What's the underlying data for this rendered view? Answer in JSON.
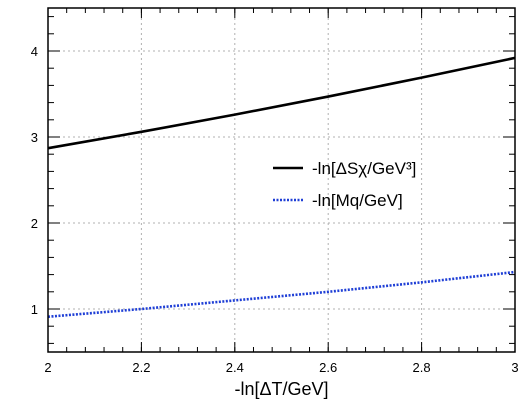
{
  "chart_data": {
    "type": "line",
    "title": "",
    "xlabel": "-ln[ΔT/GeV]",
    "ylabel": "",
    "xlim": [
      2,
      3
    ],
    "ylim": [
      0.5,
      4.5
    ],
    "xticks": [
      2,
      2.2,
      2.4,
      2.6,
      2.8,
      3
    ],
    "xtick_labels": [
      "2",
      "2.2",
      "2.4",
      "2.6",
      "2.8",
      "3"
    ],
    "yticks": [
      1,
      2,
      3,
      4
    ],
    "ytick_labels": [
      "1",
      "2",
      "3",
      "4"
    ],
    "grid": true,
    "legend_position": "center-right",
    "series": [
      {
        "name": "-ln[ΔSχ/GeV³]",
        "color": "#000000",
        "style": "solid",
        "x": [
          2.0,
          2.2,
          2.4,
          2.6,
          2.8,
          3.0
        ],
        "y": [
          2.87,
          3.06,
          3.26,
          3.47,
          3.69,
          3.92
        ]
      },
      {
        "name": "-ln[Mq/GeV]",
        "color": "#1f3fd6",
        "style": "dotted",
        "x": [
          2.0,
          2.2,
          2.4,
          2.6,
          2.8,
          3.0
        ],
        "y": [
          0.91,
          1.0,
          1.1,
          1.2,
          1.31,
          1.43
        ]
      }
    ]
  }
}
